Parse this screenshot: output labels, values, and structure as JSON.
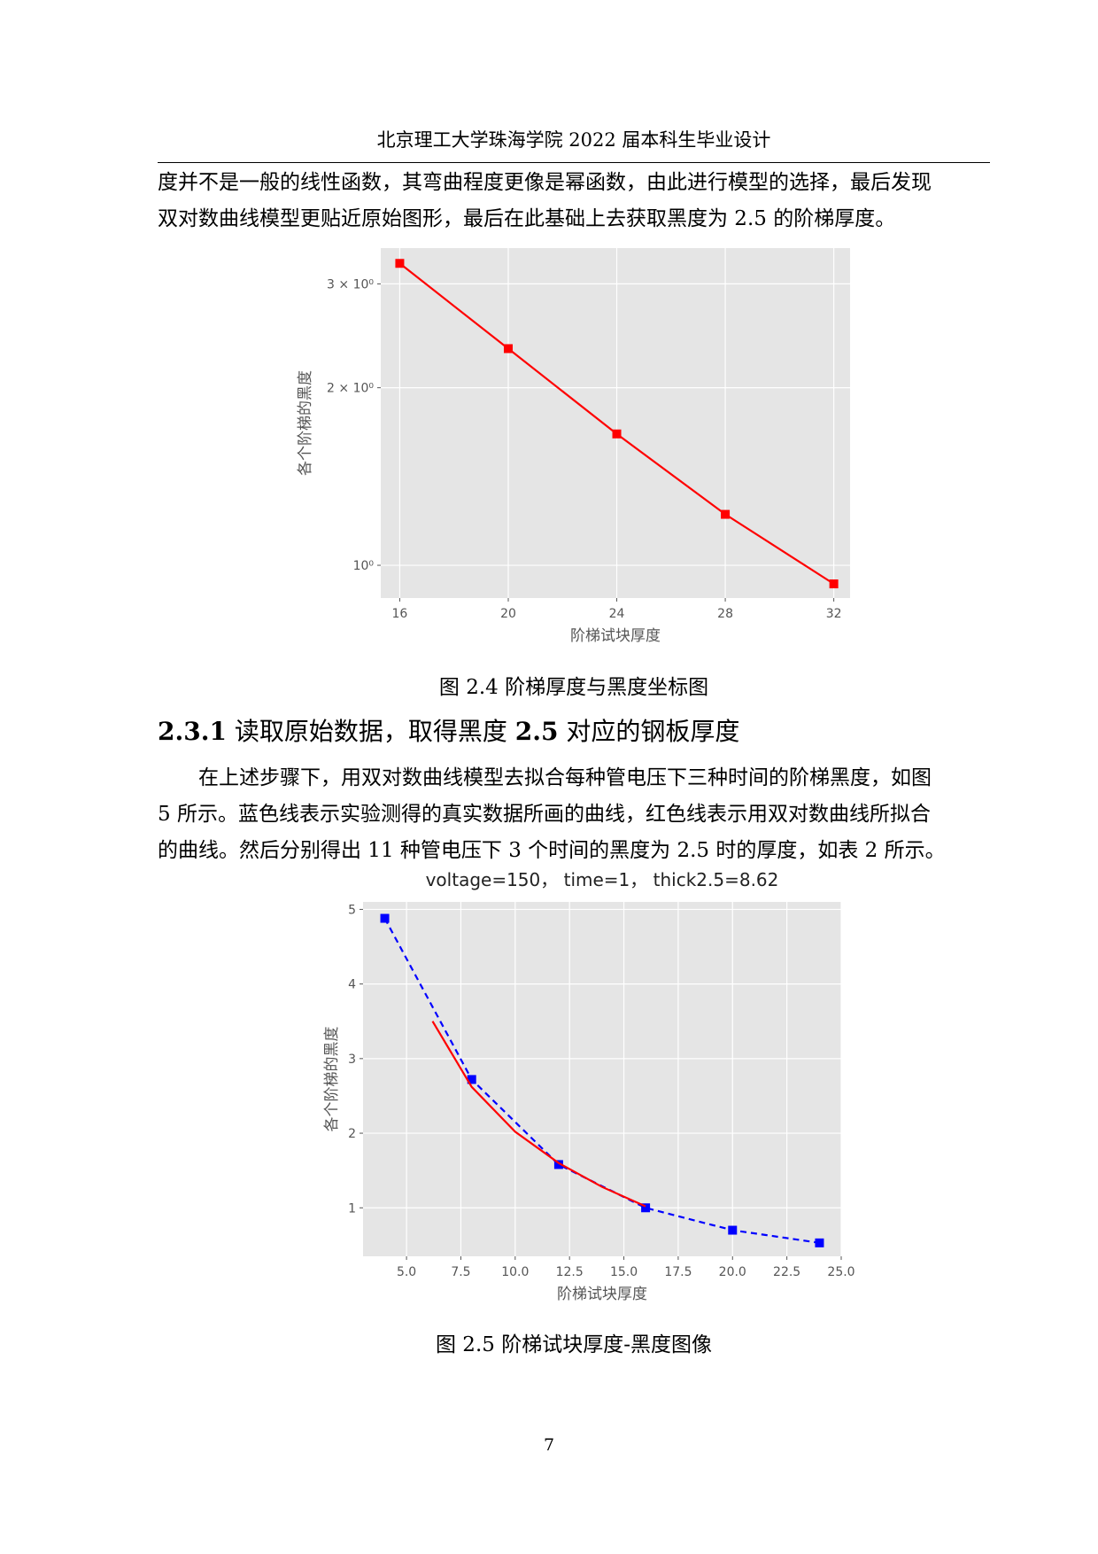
{
  "header": {
    "title": "北京理工大学珠海学院 2022 届本科生毕业设计"
  },
  "paragraphs": {
    "p1_line1": "度并不是一般的线性函数，其弯曲程度更像是幂函数，由此进行模型的选择，最后发现",
    "p1_line2": "双对数曲线模型更贴近原始图形，最后在此基础上去获取黑度为 2.5 的阶梯厚度。",
    "p2_line1": "在上述步骤下，用双对数曲线模型去拟合每种管电压下三种时间的阶梯黑度，如图",
    "p2_line2": "5 所示。蓝色线表示实验测得的真实数据所画的曲线，红色线表示用双对数曲线所拟合",
    "p2_line3": "的曲线。然后分别得出 11 种管电压下 3 个时间的黑度为 2.5 时的厚度，如表 2 所示。"
  },
  "section": {
    "number": "2.3.1",
    "title": " 读取原始数据，取得黑度 ",
    "title_bold_value": "2.5",
    "title_tail": " 对应的钢板厚度"
  },
  "captions": {
    "fig24": "图 2.4  阶梯厚度与黑度坐标图",
    "fig25": "图 2.5  阶梯试块厚度-黑度图像"
  },
  "page_number": "7",
  "chart_data": [
    {
      "type": "line",
      "title": "",
      "xlabel": "阶梯试块厚度",
      "ylabel": "各个阶梯的黑度",
      "xscale": "linear",
      "yscale": "log",
      "xlim": [
        15.3,
        32.6
      ],
      "ylim": [
        0.88,
        3.45
      ],
      "xticks": [
        16,
        20,
        24,
        28,
        32
      ],
      "xtick_labels": [
        "16",
        "20",
        "24",
        "28",
        "32"
      ],
      "yticks": [
        3,
        2,
        1
      ],
      "ytick_labels": [
        "3 × 10⁰",
        "2 × 10⁰",
        "10⁰"
      ],
      "grid": true,
      "background": "#e5e5e5",
      "series": [
        {
          "color": "#ff0000",
          "marker": "square",
          "linestyle": "solid",
          "x": [
            16,
            20,
            24,
            28,
            32
          ],
          "y": [
            3.25,
            2.33,
            1.67,
            1.22,
            0.93
          ]
        }
      ]
    },
    {
      "type": "line",
      "title": "voltage=150， time=1， thick2.5=8.62",
      "xlabel": "阶梯试块厚度",
      "ylabel": "各个阶梯的黑度",
      "xscale": "linear",
      "yscale": "linear",
      "xlim": [
        3.0,
        25.0
      ],
      "ylim": [
        0.35,
        5.1
      ],
      "xticks": [
        5.0,
        7.5,
        10.0,
        12.5,
        15.0,
        17.5,
        20.0,
        22.5,
        25.0
      ],
      "xtick_labels": [
        "5.0",
        "7.5",
        "10.0",
        "12.5",
        "15.0",
        "17.5",
        "20.0",
        "22.5",
        "25.0"
      ],
      "yticks": [
        1,
        2,
        3,
        4,
        5
      ],
      "ytick_labels": [
        "1",
        "2",
        "3",
        "4",
        "5"
      ],
      "grid": true,
      "background": "#e5e5e5",
      "series": [
        {
          "color": "#0000ff",
          "marker": "square",
          "linestyle": "dashed",
          "x": [
            4,
            8,
            12,
            16,
            20,
            24
          ],
          "y": [
            4.88,
            2.72,
            1.58,
            1.0,
            0.7,
            0.53
          ]
        },
        {
          "color": "#ff0000",
          "marker": "none",
          "linestyle": "solid",
          "x": [
            6.2,
            8,
            10,
            12,
            14,
            16
          ],
          "y": [
            3.5,
            2.62,
            2.02,
            1.6,
            1.28,
            1.02
          ]
        }
      ]
    }
  ]
}
